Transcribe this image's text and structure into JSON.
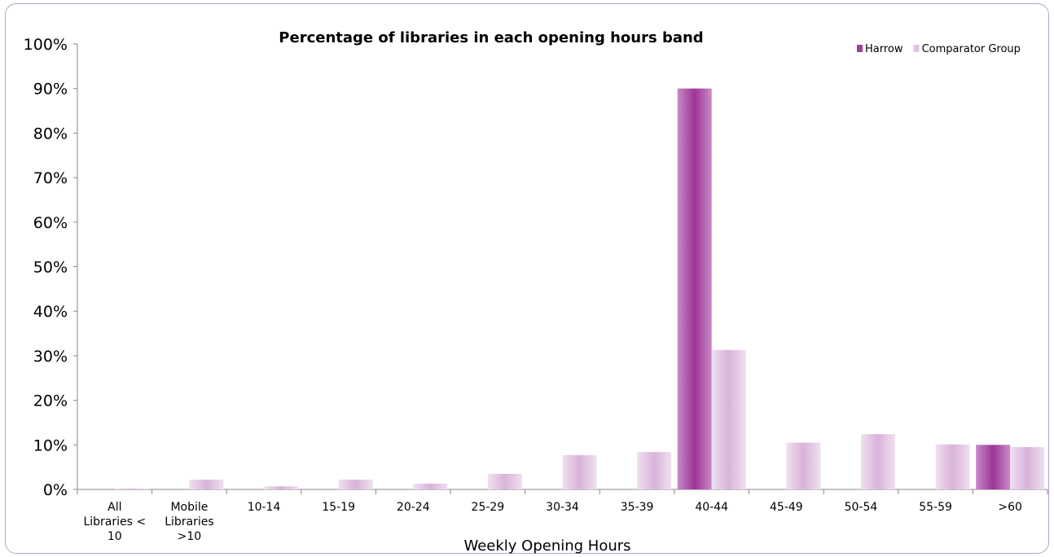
{
  "chart_data": {
    "type": "bar",
    "title": "Percentage of libraries in each opening hours band",
    "xlabel": "Weekly Opening Hours",
    "ylabel": "",
    "ylim": [
      0,
      100
    ],
    "yticks": [
      "0%",
      "10%",
      "20%",
      "30%",
      "40%",
      "50%",
      "60%",
      "70%",
      "80%",
      "90%",
      "100%"
    ],
    "categories": [
      [
        "All",
        "Libraries <",
        "10"
      ],
      [
        "Mobile",
        "Libraries",
        ">10"
      ],
      [
        "10-14"
      ],
      [
        "15-19"
      ],
      [
        "20-24"
      ],
      [
        "25-29"
      ],
      [
        "30-34"
      ],
      [
        "35-39"
      ],
      [
        "40-44"
      ],
      [
        "45-49"
      ],
      [
        "50-54"
      ],
      [
        "55-59"
      ],
      [
        ">60"
      ]
    ],
    "series": [
      {
        "name": "Harrow",
        "color": "#a23f9c",
        "values": [
          0,
          0,
          0,
          0,
          0,
          0,
          0,
          0,
          90,
          0,
          0,
          0,
          10
        ]
      },
      {
        "name": "Comparator Group",
        "color": "#e2c3e2",
        "values": [
          0.2,
          2.2,
          0.7,
          2.2,
          1.3,
          3.5,
          7.7,
          8.4,
          31.3,
          10.5,
          12.4,
          10.1,
          9.5
        ]
      }
    ],
    "grid": false,
    "legend_position": "top-right"
  }
}
